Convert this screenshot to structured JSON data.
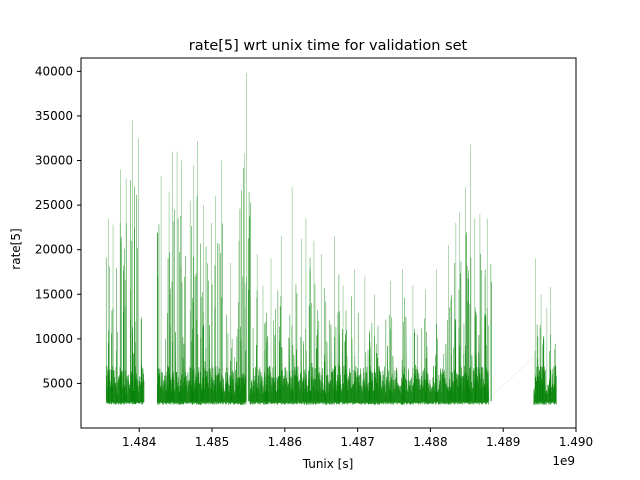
{
  "chart_data": {
    "type": "line",
    "title": "rate[5] wrt unix time for validation set",
    "xlabel": "Tunix [s]",
    "ylabel": "rate[5]",
    "x_offset_label": "1e9",
    "x_units_scale": 1000000000,
    "xlim": [
      1483200000,
      1490000000
    ],
    "ylim": [
      0,
      41500
    ],
    "x_ticks": [
      1484000000,
      1485000000,
      1486000000,
      1487000000,
      1488000000,
      1489000000,
      1490000000
    ],
    "x_tick_labels": [
      "1.484",
      "1.485",
      "1.486",
      "1.487",
      "1.488",
      "1.489",
      "1.490"
    ],
    "y_ticks": [
      5000,
      10000,
      15000,
      20000,
      25000,
      30000,
      35000,
      40000
    ],
    "y_tick_labels": [
      "5000",
      "10000",
      "15000",
      "20000",
      "25000",
      "30000",
      "35000",
      "40000"
    ],
    "grid": false,
    "series_color": "#008000",
    "baseline": 3000,
    "segments": [
      {
        "x_start": 1483550000,
        "x_end": 1484070000
      },
      {
        "x_start": 1484250000,
        "x_end": 1485470000
      },
      {
        "x_start": 1485520000,
        "x_end": 1488800000
      },
      {
        "x_start": 1489420000,
        "x_end": 1489730000
      }
    ],
    "peaks": [
      {
        "x": 1483580000,
        "y": 23500
      },
      {
        "x": 1483640000,
        "y": 22800
      },
      {
        "x": 1483740000,
        "y": 29000
      },
      {
        "x": 1483820000,
        "y": 28000
      },
      {
        "x": 1483880000,
        "y": 15500
      },
      {
        "x": 1483910000,
        "y": 34500
      },
      {
        "x": 1483990000,
        "y": 32500
      },
      {
        "x": 1484300000,
        "y": 28300
      },
      {
        "x": 1484410000,
        "y": 26500
      },
      {
        "x": 1484460000,
        "y": 31000
      },
      {
        "x": 1484520000,
        "y": 31000
      },
      {
        "x": 1484580000,
        "y": 30000
      },
      {
        "x": 1484700000,
        "y": 25500
      },
      {
        "x": 1484750000,
        "y": 29500
      },
      {
        "x": 1484800000,
        "y": 32200
      },
      {
        "x": 1484880000,
        "y": 25000
      },
      {
        "x": 1484990000,
        "y": 23000
      },
      {
        "x": 1485050000,
        "y": 26000
      },
      {
        "x": 1485130000,
        "y": 30000
      },
      {
        "x": 1485250000,
        "y": 18500
      },
      {
        "x": 1485370000,
        "y": 21000
      },
      {
        "x": 1485450000,
        "y": 30800
      },
      {
        "x": 1485470000,
        "y": 39800
      },
      {
        "x": 1485620000,
        "y": 19500
      },
      {
        "x": 1485700000,
        "y": 16000
      },
      {
        "x": 1485810000,
        "y": 19000
      },
      {
        "x": 1485950000,
        "y": 21500
      },
      {
        "x": 1486100000,
        "y": 27000
      },
      {
        "x": 1486230000,
        "y": 21200
      },
      {
        "x": 1486290000,
        "y": 23500
      },
      {
        "x": 1486400000,
        "y": 21000
      },
      {
        "x": 1486500000,
        "y": 19500
      },
      {
        "x": 1486680000,
        "y": 21500
      },
      {
        "x": 1486800000,
        "y": 16000
      },
      {
        "x": 1486960000,
        "y": 17800
      },
      {
        "x": 1487100000,
        "y": 17000
      },
      {
        "x": 1487230000,
        "y": 15000
      },
      {
        "x": 1487450000,
        "y": 16500
      },
      {
        "x": 1487620000,
        "y": 17800
      },
      {
        "x": 1487760000,
        "y": 16000
      },
      {
        "x": 1487930000,
        "y": 15500
      },
      {
        "x": 1488080000,
        "y": 17800
      },
      {
        "x": 1488250000,
        "y": 20500
      },
      {
        "x": 1488350000,
        "y": 23000
      },
      {
        "x": 1488400000,
        "y": 24200
      },
      {
        "x": 1488480000,
        "y": 27000
      },
      {
        "x": 1488550000,
        "y": 31800
      },
      {
        "x": 1488610000,
        "y": 23500
      },
      {
        "x": 1488680000,
        "y": 24000
      },
      {
        "x": 1488750000,
        "y": 17000
      },
      {
        "x": 1488780000,
        "y": 23500
      },
      {
        "x": 1489440000,
        "y": 19000
      },
      {
        "x": 1489520000,
        "y": 15000
      },
      {
        "x": 1489600000,
        "y": 13500
      },
      {
        "x": 1489650000,
        "y": 15800
      }
    ],
    "gap_connectors": [
      {
        "x_start": 1488800000,
        "y_start": 3200,
        "x_end": 1489420000,
        "y_end": 8000
      }
    ]
  }
}
